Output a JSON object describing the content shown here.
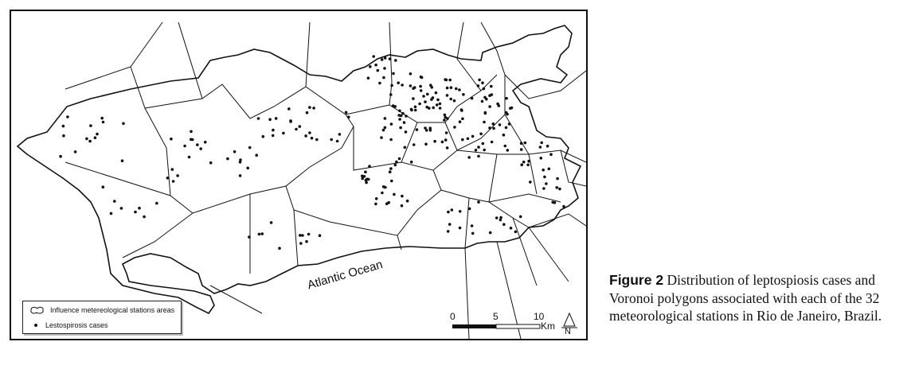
{
  "map": {
    "legend": {
      "areas_label": "Influence metereological stations areas",
      "cases_label": "Lestospirosis cases"
    },
    "ocean_label": "Atlantic Ocean",
    "scale": {
      "ticks": [
        "0",
        "5",
        "10"
      ],
      "unit": "Km"
    },
    "north_label": "N"
  },
  "caption": {
    "label": "Figure 2",
    "text": "Distribution of leptospiosis cases and Voronoi polygons associated with each of the 32 meteorological stations in Rio de Janeiro, Brazil."
  }
}
